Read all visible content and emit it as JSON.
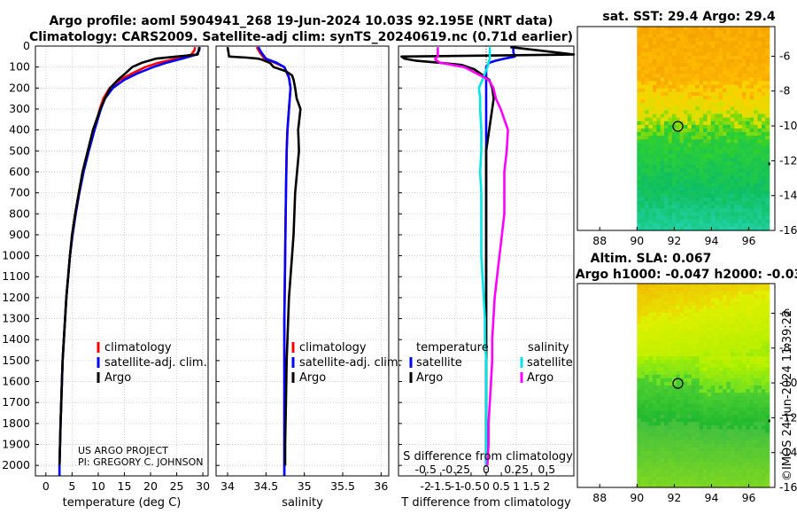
{
  "header": {
    "title_line1": "Argo profile: aoml 5904941_268 19-Jun-2024 10.03S 92.195E (NRT data)",
    "title_line2": "Climatology: CARS2009. Satellite-adj clim: synTS_20240619.nc (0.71d earlier)"
  },
  "colors": {
    "climatology": "#ff0000",
    "satellite": "#0000ff",
    "argo": "#000000",
    "sat_salinity": "#00e5e5",
    "argo_salinity": "#ff00ff"
  },
  "credits": {
    "project": "US ARGO PROJECT",
    "pi": "PI: GREGORY C. JOHNSON"
  },
  "legend_profiles": {
    "climatology": "climatology",
    "satellite": "satellite-adj. clim.",
    "argo": "Argo"
  },
  "legend_diff": {
    "temperature_title": "temperature",
    "salinity_title": "salinity",
    "satellite": "satellite",
    "argo": "Argo"
  },
  "chart_data": [
    {
      "type": "line",
      "name": "temperature-profile",
      "xlabel": "temperature (deg C)",
      "xlim": [
        -2,
        31
      ],
      "ylim": [
        0,
        2050
      ],
      "xticks": [
        "0",
        "5",
        "10",
        "15",
        "20",
        "25",
        "30"
      ],
      "yticks": [
        "0",
        "100",
        "200",
        "300",
        "400",
        "500",
        "600",
        "700",
        "800",
        "900",
        "1000",
        "1100",
        "1200",
        "1300",
        "1400",
        "1500",
        "1600",
        "1700",
        "1800",
        "1900",
        "2000"
      ],
      "series": [
        {
          "name": "climatology",
          "depth": [
            5,
            20,
            40,
            60,
            80,
            100,
            130,
            160,
            200,
            250,
            300,
            400,
            500,
            600,
            700,
            800,
            900,
            1000,
            1200,
            1500,
            1800,
            2000,
            2050
          ],
          "values": [
            28.5,
            28.4,
            27.8,
            25,
            21.5,
            19,
            16.5,
            14.2,
            12.2,
            11,
            10.3,
            9.2,
            8.1,
            7.1,
            6.3,
            5.6,
            5.0,
            4.6,
            3.9,
            3.2,
            2.8,
            2.6,
            2.6
          ]
        },
        {
          "name": "satellite-adj. clim.",
          "depth": [
            5,
            20,
            40,
            60,
            80,
            100,
            130,
            160,
            200,
            250,
            300,
            400,
            500,
            600,
            700,
            800,
            900,
            1000,
            1200,
            1500,
            1800,
            2000,
            2050
          ],
          "values": [
            29.4,
            29.3,
            28.8,
            26,
            23,
            20.5,
            17.5,
            15,
            12.8,
            11.3,
            10.5,
            9.3,
            8.2,
            7.2,
            6.4,
            5.7,
            5.1,
            4.6,
            3.9,
            3.2,
            2.8,
            2.6,
            2.6
          ]
        },
        {
          "name": "Argo",
          "depth": [
            5,
            20,
            40,
            50,
            60,
            80,
            100,
            130,
            160,
            200,
            250,
            300,
            400,
            500,
            600,
            700,
            800,
            900,
            1000,
            1200,
            1500,
            1800,
            2000
          ],
          "values": [
            29.3,
            29.2,
            29.0,
            25,
            21,
            18.3,
            16.5,
            15.2,
            13.8,
            12.3,
            11.3,
            10.4,
            9.0,
            8.0,
            7.0,
            6.3,
            5.6,
            5.0,
            4.6,
            3.9,
            3.2,
            2.8,
            2.6
          ]
        }
      ]
    },
    {
      "type": "line",
      "name": "salinity-profile",
      "xlabel": "salinity",
      "xlim": [
        33.85,
        36.1
      ],
      "ylim": [
        0,
        2050
      ],
      "xticks": [
        "34",
        "34.5",
        "35",
        "35.5",
        "36"
      ],
      "series": [
        {
          "name": "climatology",
          "depth": [
            5,
            30,
            60,
            80,
            100,
            150,
            200,
            300,
            400,
            500,
            700,
            1000,
            1300,
            1500,
            1800,
            2000,
            2050
          ],
          "values": [
            34.38,
            34.42,
            34.48,
            34.62,
            34.74,
            34.8,
            34.82,
            34.8,
            34.78,
            34.77,
            34.76,
            34.75,
            34.74,
            34.74,
            34.74,
            34.74,
            34.74
          ]
        },
        {
          "name": "satellite-adj. clim.",
          "depth": [
            5,
            30,
            60,
            80,
            100,
            150,
            200,
            300,
            400,
            500,
            700,
            1000,
            1300,
            1500,
            1800,
            2000,
            2050
          ],
          "values": [
            34.4,
            34.44,
            34.5,
            34.64,
            34.74,
            34.8,
            34.82,
            34.8,
            34.78,
            34.77,
            34.76,
            34.75,
            34.74,
            34.74,
            34.74,
            34.74,
            34.74
          ]
        },
        {
          "name": "Argo",
          "depth": [
            5,
            50,
            55,
            60,
            65,
            80,
            100,
            120,
            140,
            160,
            200,
            250,
            300,
            400,
            500,
            700,
            900,
            1000,
            1200,
            1400,
            1500,
            1700,
            1900,
            2000
          ],
          "values": [
            34.0,
            34.02,
            34.25,
            34.4,
            34.45,
            34.55,
            34.6,
            34.76,
            34.84,
            34.86,
            34.88,
            34.9,
            34.95,
            34.92,
            34.93,
            34.88,
            34.86,
            34.84,
            34.8,
            34.78,
            34.77,
            34.76,
            34.75,
            34.75
          ]
        }
      ]
    },
    {
      "type": "line",
      "name": "difference-from-climatology",
      "xlabel": "T difference from climatology",
      "x2label": "S difference from climatology",
      "xlim": [
        -2.9,
        2.9
      ],
      "ylim": [
        0,
        2050
      ],
      "xticks": [
        "-2",
        "-1.5",
        "-1",
        "-0.5",
        "0",
        "0.5",
        "1",
        "1.5",
        "2"
      ],
      "x2ticks": [
        "-0.5",
        "-0.25",
        "0",
        "0.25",
        "0.5"
      ],
      "series": [
        {
          "name": "temperature satellite",
          "depth": [
            5,
            30,
            50,
            60,
            70,
            80,
            100,
            150,
            200,
            300,
            1000,
            2000
          ],
          "values": [
            0.9,
            0.9,
            0.95,
            0.6,
            0.3,
            0.1,
            0.0,
            0.0,
            0.0,
            0.0,
            0.0,
            0.0
          ]
        },
        {
          "name": "temperature Argo",
          "depth": [
            5,
            40,
            50,
            60,
            70,
            80,
            90,
            100,
            110,
            130,
            160,
            200,
            250,
            300,
            400,
            500,
            700,
            900,
            1000,
            1200,
            1500,
            1800,
            2000
          ],
          "values": [
            0.8,
            2.9,
            -2.8,
            -2.7,
            -2.3,
            -1.5,
            -0.8,
            -0.6,
            -0.4,
            -0.2,
            0.1,
            0.2,
            0.25,
            0.2,
            0.1,
            0.0,
            0.0,
            0.0,
            0.0,
            0.0,
            0.0,
            0.0,
            0.0
          ]
        },
        {
          "name": "salinity satellite",
          "depth": [
            5,
            40,
            60,
            80,
            100,
            130,
            160,
            200,
            250,
            300,
            400,
            500,
            600,
            700,
            800,
            900,
            1000,
            1100,
            1200,
            1300,
            1400,
            1500,
            1600,
            1800,
            2000
          ],
          "values": [
            0.03,
            0.03,
            0.03,
            0.02,
            0.01,
            -0.01,
            -0.03,
            -0.06,
            -0.05,
            -0.05,
            -0.04,
            -0.04,
            -0.05,
            -0.04,
            -0.04,
            -0.04,
            -0.04,
            -0.03,
            -0.02,
            -0.01,
            -0.01,
            0.0,
            0.0,
            0.0,
            0.0
          ]
        },
        {
          "name": "salinity Argo",
          "depth": [
            5,
            50,
            60,
            65,
            80,
            100,
            130,
            160,
            200,
            250,
            300,
            400,
            500,
            600,
            700,
            800,
            900,
            1000,
            1100,
            1200,
            1300,
            1400,
            1500,
            1600,
            1700,
            1800,
            1900,
            2000
          ],
          "values": [
            -0.4,
            -0.4,
            -0.42,
            -0.42,
            -0.38,
            -0.18,
            -0.08,
            0.02,
            0.06,
            0.08,
            0.12,
            0.18,
            0.17,
            0.15,
            0.15,
            0.15,
            0.13,
            0.11,
            0.09,
            0.07,
            0.06,
            0.05,
            0.05,
            0.04,
            0.03,
            0.02,
            0.02,
            0.01
          ]
        }
      ]
    },
    {
      "type": "heatmap",
      "name": "sat-sst-map",
      "title": "sat. SST: 29.4 Argo: 29.4",
      "xticks": [
        "88",
        "90",
        "92",
        "94",
        "96"
      ],
      "yticks": [
        "-6",
        "-8",
        "-10",
        "-12",
        "-14",
        "-16"
      ],
      "argo_position": {
        "lon": 92.195,
        "lat": -10.03
      }
    },
    {
      "type": "heatmap",
      "name": "sla-map",
      "title_line1": "Altim. SLA: 0.067",
      "title_line2": "Argo h1000: -0.047 h2000: -0.03",
      "xticks": [
        "88",
        "90",
        "92",
        "94",
        "96"
      ],
      "yticks": [
        "-6",
        "-8",
        "-10",
        "-12",
        "-14",
        "-16"
      ],
      "argo_position": {
        "lon": 92.195,
        "lat": -10.03
      }
    }
  ],
  "footer": {
    "imos_stamp": "©IMOS 24-Jun-2024 11:39:22"
  }
}
